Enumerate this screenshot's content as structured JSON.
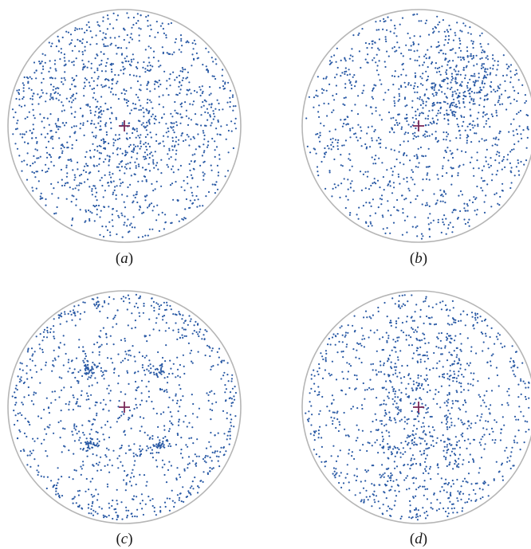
{
  "figure": {
    "panels": [
      {
        "id": "a",
        "label": "a",
        "pattern": "uniform",
        "seed": 11,
        "count": 1350
      },
      {
        "id": "b",
        "label": "b",
        "pattern": "uniform-upper-right",
        "seed": 23,
        "count": 1250
      },
      {
        "id": "c",
        "label": "c",
        "pattern": "four-clusters-rim",
        "seed": 37,
        "count": 1150
      },
      {
        "id": "d",
        "label": "d",
        "pattern": "vertical-bands",
        "seed": 53,
        "count": 1250
      }
    ]
  },
  "colors": {
    "points": "#2a5aa5",
    "circle": "#b5b5b5",
    "center_cross": "#7a2a5a"
  }
}
